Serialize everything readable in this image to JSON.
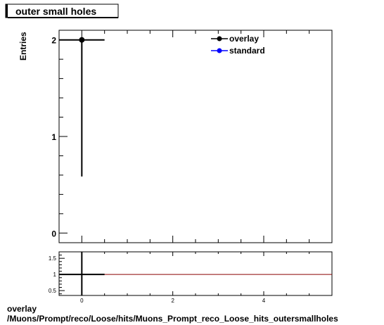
{
  "title": "outer small holes",
  "caption": {
    "line1": "overlay",
    "line2": "/Muons/Prompt/reco/Loose/hits/Muons_Prompt_reco_Loose_hits_outersmallholes"
  },
  "colors": {
    "overlay": "#000000",
    "standard": "#0000ff",
    "ratio_line": "#8b0000"
  },
  "chart_data": [
    {
      "type": "scatter",
      "ylabel": "Entries",
      "xlim": [
        -0.5,
        5.5
      ],
      "ylim": [
        -0.1,
        2.1
      ],
      "x_ticks": [
        "0",
        "2",
        "4"
      ],
      "y_ticks": [
        "0",
        "1",
        "2"
      ],
      "legend": "top-right",
      "series": [
        {
          "name": "overlay",
          "points": [
            {
              "x": 0,
              "y": 2,
              "xerr": 0.5,
              "ylow": 0.586,
              "yhigh": 2.0
            }
          ]
        },
        {
          "name": "standard",
          "points": []
        }
      ]
    },
    {
      "type": "line",
      "xlim": [
        -0.5,
        5.5
      ],
      "ylim": [
        0.35,
        1.7
      ],
      "x_ticks": [
        "0",
        "2",
        "4"
      ],
      "y_ticks": [
        "0.5",
        "1",
        "1.5"
      ],
      "reference_line": 1,
      "points": [
        {
          "x": 0,
          "y": 1,
          "xerr": 0.5
        }
      ]
    }
  ]
}
